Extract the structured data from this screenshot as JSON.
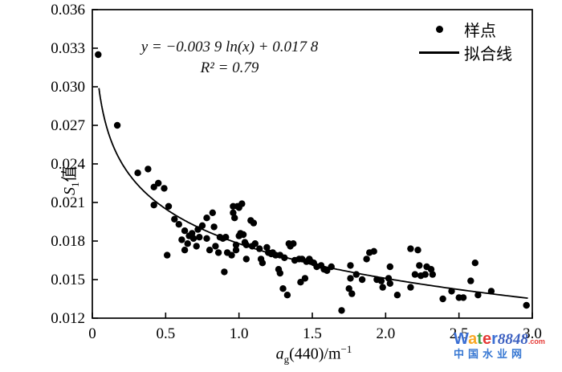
{
  "figure": {
    "background": "#ffffff",
    "axis_color": "#000000",
    "point_color": "#000000",
    "curve_color": "#000000",
    "watermark": {
      "letters": [
        {
          "char": "W",
          "color": "#3b6fd4"
        },
        {
          "char": "a",
          "color": "#f9a825"
        },
        {
          "char": "t",
          "color": "#43a047"
        },
        {
          "char": "e",
          "color": "#e53935"
        },
        {
          "char": "r",
          "color": "#3b6fd4"
        }
      ],
      "suffix": "8848",
      "suffix_color": "#3b5fc0",
      "dotcom": ".com",
      "dotcom_color": "#e53935",
      "subtitle": "中国水业网",
      "subtitle_color": "#3576d2"
    }
  },
  "chart_data": {
    "type": "scatter",
    "title": "",
    "xlabel": "ag(440)/m−1",
    "ylabel": "S1值",
    "xlabel_parts": {
      "var": "a",
      "sub": "g",
      "mid": "(440)/m",
      "sup": "−1"
    },
    "ylabel_parts": {
      "var": "S",
      "sub": "1",
      "suffix": "值"
    },
    "xlim": [
      0,
      3.0
    ],
    "ylim": [
      0.012,
      0.036
    ],
    "xticks": [
      "0",
      "0.5",
      "1.0",
      "1.5",
      "2.0",
      "2.5",
      "3.0"
    ],
    "yticks": [
      "0.012",
      "0.015",
      "0.018",
      "0.021",
      "0.024",
      "0.027",
      "0.030",
      "0.033",
      "0.036"
    ],
    "grid": false,
    "legend_position": "top-right",
    "legend": [
      {
        "marker": "dot",
        "label": "样点"
      },
      {
        "marker": "line",
        "label": "拟合线"
      }
    ],
    "fit": {
      "type": "log",
      "a": -0.0039,
      "b": 0.0178,
      "r2": 0.79,
      "x_range": [
        0.045,
        2.97
      ],
      "equation_text": "y = −0.003 9 ln(x) + 0.017 8",
      "r2_text": "R² = 0.79"
    },
    "points": [
      [
        0.04,
        0.0325
      ],
      [
        0.17,
        0.027
      ],
      [
        0.31,
        0.0233
      ],
      [
        0.38,
        0.0236
      ],
      [
        0.42,
        0.0222
      ],
      [
        0.45,
        0.0225
      ],
      [
        0.49,
        0.0221
      ],
      [
        0.42,
        0.0208
      ],
      [
        0.52,
        0.0207
      ],
      [
        0.51,
        0.0169
      ],
      [
        0.56,
        0.0197
      ],
      [
        0.59,
        0.0193
      ],
      [
        0.61,
        0.0181
      ],
      [
        0.63,
        0.0188
      ],
      [
        0.63,
        0.0173
      ],
      [
        0.65,
        0.0178
      ],
      [
        0.66,
        0.0184
      ],
      [
        0.68,
        0.0186
      ],
      [
        0.69,
        0.0182
      ],
      [
        0.71,
        0.0176
      ],
      [
        0.72,
        0.0189
      ],
      [
        0.73,
        0.0183
      ],
      [
        0.75,
        0.0192
      ],
      [
        0.78,
        0.0198
      ],
      [
        0.78,
        0.0182
      ],
      [
        0.8,
        0.0173
      ],
      [
        0.82,
        0.0202
      ],
      [
        0.83,
        0.0191
      ],
      [
        0.84,
        0.0176
      ],
      [
        0.86,
        0.0171
      ],
      [
        0.87,
        0.0183
      ],
      [
        0.89,
        0.0182
      ],
      [
        0.9,
        0.0156
      ],
      [
        0.91,
        0.0183
      ],
      [
        0.92,
        0.0171
      ],
      [
        0.95,
        0.0169
      ],
      [
        0.96,
        0.0202
      ],
      [
        0.96,
        0.0207
      ],
      [
        0.97,
        0.0198
      ],
      [
        0.98,
        0.0173
      ],
      [
        0.98,
        0.0177
      ],
      [
        0.99,
        0.0207
      ],
      [
        1.0,
        0.0206
      ],
      [
        1.0,
        0.0184
      ],
      [
        1.01,
        0.0186
      ],
      [
        1.02,
        0.0209
      ],
      [
        1.03,
        0.0185
      ],
      [
        1.04,
        0.0179
      ],
      [
        1.05,
        0.0177
      ],
      [
        1.05,
        0.0166
      ],
      [
        1.08,
        0.0196
      ],
      [
        1.09,
        0.0176
      ],
      [
        1.1,
        0.0194
      ],
      [
        1.11,
        0.0178
      ],
      [
        1.14,
        0.0174
      ],
      [
        1.15,
        0.0166
      ],
      [
        1.16,
        0.0163
      ],
      [
        1.19,
        0.0175
      ],
      [
        1.2,
        0.0171
      ],
      [
        1.22,
        0.017
      ],
      [
        1.23,
        0.0171
      ],
      [
        1.25,
        0.0169
      ],
      [
        1.27,
        0.0158
      ],
      [
        1.28,
        0.0155
      ],
      [
        1.28,
        0.0169
      ],
      [
        1.3,
        0.0143
      ],
      [
        1.31,
        0.0167
      ],
      [
        1.33,
        0.0138
      ],
      [
        1.34,
        0.0178
      ],
      [
        1.35,
        0.0176
      ],
      [
        1.37,
        0.0178
      ],
      [
        1.38,
        0.0165
      ],
      [
        1.41,
        0.0166
      ],
      [
        1.42,
        0.0148
      ],
      [
        1.43,
        0.0166
      ],
      [
        1.45,
        0.0151
      ],
      [
        1.46,
        0.0164
      ],
      [
        1.48,
        0.0166
      ],
      [
        1.49,
        0.0164
      ],
      [
        1.51,
        0.0163
      ],
      [
        1.53,
        0.016
      ],
      [
        1.56,
        0.0161
      ],
      [
        1.58,
        0.0158
      ],
      [
        1.6,
        0.0157
      ],
      [
        1.63,
        0.016
      ],
      [
        1.7,
        0.0126
      ],
      [
        1.75,
        0.0143
      ],
      [
        1.76,
        0.0161
      ],
      [
        1.76,
        0.0151
      ],
      [
        1.77,
        0.0139
      ],
      [
        1.8,
        0.0154
      ],
      [
        1.84,
        0.015
      ],
      [
        1.87,
        0.0166
      ],
      [
        1.89,
        0.0171
      ],
      [
        1.92,
        0.0172
      ],
      [
        1.94,
        0.015
      ],
      [
        1.97,
        0.0149
      ],
      [
        1.98,
        0.0144
      ],
      [
        2.02,
        0.0151
      ],
      [
        2.03,
        0.016
      ],
      [
        2.03,
        0.0147
      ],
      [
        2.08,
        0.0138
      ],
      [
        2.17,
        0.0174
      ],
      [
        2.17,
        0.0144
      ],
      [
        2.2,
        0.0154
      ],
      [
        2.22,
        0.0173
      ],
      [
        2.23,
        0.0161
      ],
      [
        2.24,
        0.0153
      ],
      [
        2.27,
        0.0154
      ],
      [
        2.28,
        0.016
      ],
      [
        2.31,
        0.0158
      ],
      [
        2.32,
        0.0154
      ],
      [
        2.39,
        0.0135
      ],
      [
        2.45,
        0.0141
      ],
      [
        2.5,
        0.0136
      ],
      [
        2.53,
        0.0136
      ],
      [
        2.58,
        0.0149
      ],
      [
        2.61,
        0.0163
      ],
      [
        2.63,
        0.0138
      ],
      [
        2.72,
        0.0141
      ],
      [
        2.96,
        0.013
      ]
    ]
  }
}
